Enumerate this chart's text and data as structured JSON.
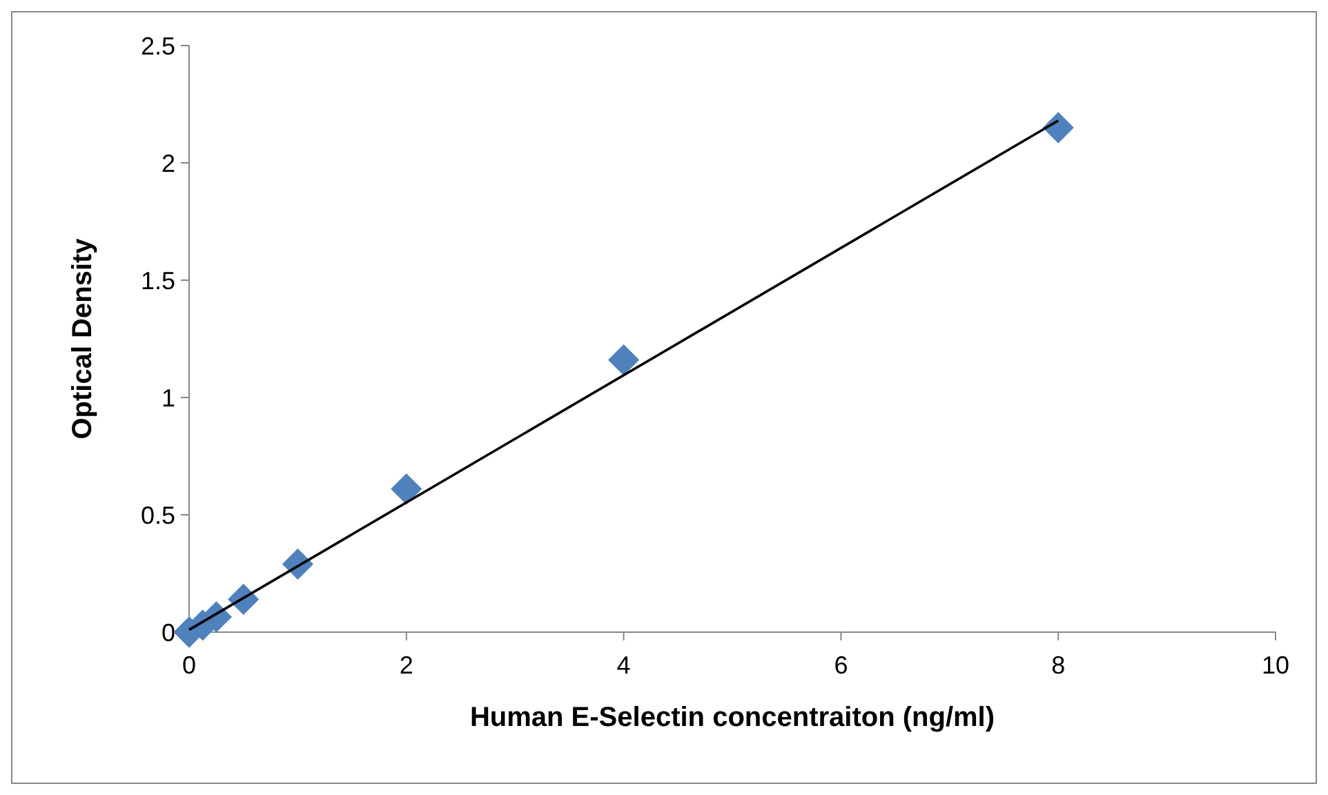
{
  "chart_data": {
    "type": "scatter",
    "xlabel": "Human E-Selectin concentraiton (ng/ml)",
    "ylabel": "Optical Density",
    "x": [
      0,
      0.125,
      0.25,
      0.5,
      1,
      2,
      4,
      8
    ],
    "series": [
      {
        "color": "#4f81bd",
        "marker": "diamond",
        "values": [
          0,
          0.03,
          0.065,
          0.14,
          0.29,
          0.61,
          1.16,
          2.15
        ]
      },
      {
        "type": "line",
        "color": "#000000",
        "x": [
          0,
          8
        ],
        "values": [
          0.01,
          2.18
        ],
        "marker": "none",
        "line_style": "solid"
      }
    ],
    "xlim": [
      0,
      10
    ],
    "xticks": [
      0,
      2,
      4,
      6,
      8,
      10
    ],
    "ylim": [
      0,
      2.5
    ],
    "yticks": [
      0,
      0.5,
      1,
      1.5,
      2,
      2.5
    ],
    "grid": false
  }
}
